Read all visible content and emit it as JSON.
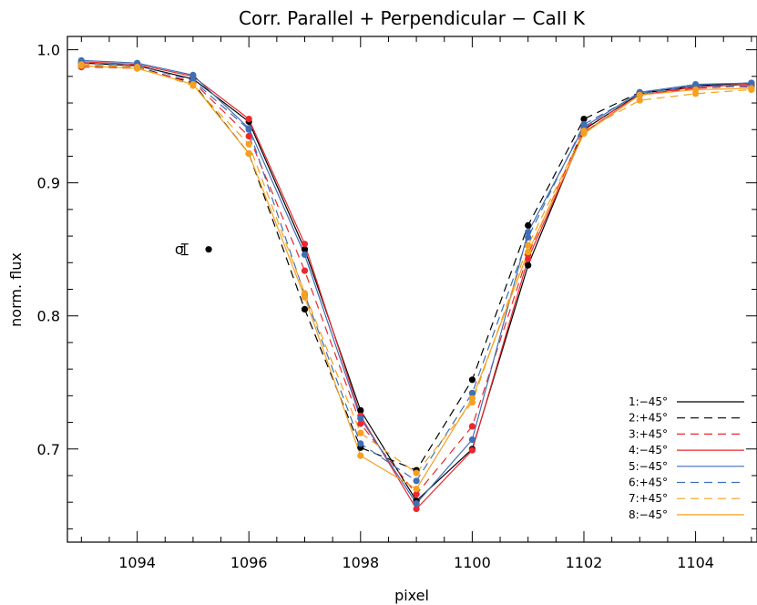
{
  "chart_data": {
    "type": "line",
    "title": "Corr. Parallel + Perpendicular − CaII K",
    "xlabel": "pixel",
    "ylabel": "norm. flux",
    "xlim": [
      1092.75,
      1105.1
    ],
    "ylim": [
      0.63,
      1.01
    ],
    "xticks": [
      1094,
      1096,
      1098,
      1100,
      1102,
      1104
    ],
    "xtick_labels": [
      "1094",
      "1096",
      "1098",
      "1100",
      "1102",
      "1104"
    ],
    "yticks": [
      0.7,
      0.8,
      0.9,
      1.0
    ],
    "ytick_labels": [
      "0.7",
      "0.8",
      "0.9",
      "1.0"
    ],
    "grid": false,
    "legend_position": "bottom-right",
    "x": [
      1093,
      1094,
      1095,
      1096,
      1097,
      1098,
      1099,
      1100,
      1101,
      1102,
      1103,
      1104,
      1105
    ],
    "series": [
      {
        "name": "1:−45°",
        "color": "#000000",
        "dash": "solid",
        "values": [
          0.99,
          0.988,
          0.978,
          0.946,
          0.85,
          0.729,
          0.661,
          0.7,
          0.838,
          0.94,
          0.967,
          0.973,
          0.975
        ]
      },
      {
        "name": "2:+45°",
        "color": "#000000",
        "dash": "dashed",
        "values": [
          0.988,
          0.987,
          0.975,
          0.922,
          0.805,
          0.701,
          0.684,
          0.752,
          0.868,
          0.948,
          0.968,
          0.972,
          0.974
        ]
      },
      {
        "name": "3:+45°",
        "color": "#e8292f",
        "dash": "dashed",
        "values": [
          0.987,
          0.986,
          0.976,
          0.935,
          0.834,
          0.719,
          0.666,
          0.717,
          0.846,
          0.941,
          0.966,
          0.971,
          0.973
        ]
      },
      {
        "name": "4:−45°",
        "color": "#e8292f",
        "dash": "solid",
        "values": [
          0.991,
          0.989,
          0.98,
          0.948,
          0.854,
          0.725,
          0.655,
          0.699,
          0.843,
          0.938,
          0.966,
          0.972,
          0.974
        ]
      },
      {
        "name": "5:−45°",
        "color": "#3f6fb5",
        "dash": "solid",
        "values": [
          0.992,
          0.99,
          0.981,
          0.941,
          0.846,
          0.723,
          0.659,
          0.707,
          0.863,
          0.942,
          0.968,
          0.974,
          0.975
        ]
      },
      {
        "name": "6:+45°",
        "color": "#3f6fb5",
        "dash": "dashed",
        "values": [
          0.99,
          0.988,
          0.977,
          0.94,
          0.816,
          0.704,
          0.676,
          0.742,
          0.859,
          0.944,
          0.967,
          0.973,
          0.972
        ]
      },
      {
        "name": "7:+45°",
        "color": "#f5a020",
        "dash": "dashed",
        "values": [
          0.989,
          0.987,
          0.973,
          0.929,
          0.817,
          0.712,
          0.682,
          0.735,
          0.853,
          0.939,
          0.962,
          0.967,
          0.97
        ]
      },
      {
        "name": "8:−45°",
        "color": "#f5a020",
        "dash": "solid",
        "values": [
          0.988,
          0.986,
          0.974,
          0.922,
          0.814,
          0.695,
          0.67,
          0.738,
          0.848,
          0.937,
          0.966,
          0.97,
          0.971
        ]
      }
    ],
    "annotation": {
      "label": "σ",
      "errorbar_x": 1094.85,
      "errorbar_y": 0.85,
      "errorbar_half": 0.004,
      "point_x": 1095.28,
      "point_y": 0.85
    }
  }
}
